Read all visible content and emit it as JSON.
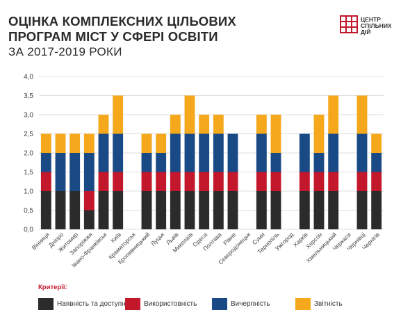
{
  "header": {
    "title_line1": "ОЦІНКА КОМПЛЕКСНИХ ЦІЛЬОВИХ",
    "title_line2": "ПРОГРАМ МІСТ У СФЕРІ ОСВІТИ",
    "subtitle": "ЗА 2017-2019 РОКИ"
  },
  "logo": {
    "line1": "ЦЕНТР",
    "line2": "СПІЛЬНИХ",
    "line3": "ДІЙ",
    "color": "#c3172b"
  },
  "legend": {
    "title": "Критерії:"
  },
  "chart_data": {
    "type": "bar",
    "stacked": true,
    "ylim": [
      0,
      4
    ],
    "yticks": [
      "0,0",
      "0,5",
      "1,0",
      "1,5",
      "2,0",
      "2,5",
      "3,0",
      "3,5",
      "4,0"
    ],
    "grid": true,
    "legend_position": "bottom",
    "categories": [
      "Вінниця",
      "Дніпро",
      "Житомир",
      "Запоріжжя",
      "Івано-Франківськ",
      "Київ",
      "Краматорськ",
      "Кропивницький",
      "Луцьк",
      "Львів",
      "Миколаїв",
      "Одеса",
      "Полтава",
      "Рівне",
      "Сєвєродонецьк",
      "Суми",
      "Тернопіль",
      "Ужгород",
      "Харків",
      "Херсон",
      "Хмельницький",
      "Черкаси",
      "Чернівці",
      "Чернігів"
    ],
    "series": [
      {
        "name": "Наявність та доступність",
        "color": "#2b2b2b",
        "values": [
          1,
          1,
          1,
          0.5,
          1,
          1,
          0,
          1,
          1,
          1,
          1,
          1,
          1,
          1,
          0,
          1,
          1,
          0,
          1,
          1,
          1,
          0,
          1,
          1
        ]
      },
      {
        "name": "Використовність",
        "color": "#c3172b",
        "values": [
          0.5,
          0,
          0,
          0.5,
          0.5,
          0.5,
          0,
          0.5,
          0.5,
          0.5,
          0.5,
          0.5,
          0.5,
          0.5,
          0,
          0.5,
          0.5,
          0,
          0.5,
          0.5,
          0.5,
          0,
          0.5,
          0.5
        ]
      },
      {
        "name": "Вичерпність",
        "color": "#1a4a86",
        "values": [
          0.5,
          1,
          1,
          1,
          1,
          1,
          0,
          0.5,
          0.5,
          1,
          1,
          1,
          1,
          1,
          0,
          1,
          0.5,
          0,
          1,
          0.5,
          1,
          0,
          1,
          0.5
        ]
      },
      {
        "name": "Звітність",
        "color": "#f5a81c",
        "values": [
          0.5,
          0.5,
          0.5,
          0.5,
          0.5,
          1,
          0,
          0.5,
          0.5,
          0.5,
          1,
          0.5,
          0.5,
          0,
          0,
          0.5,
          1,
          0,
          0,
          1,
          1,
          0,
          1,
          0.5
        ]
      }
    ]
  }
}
